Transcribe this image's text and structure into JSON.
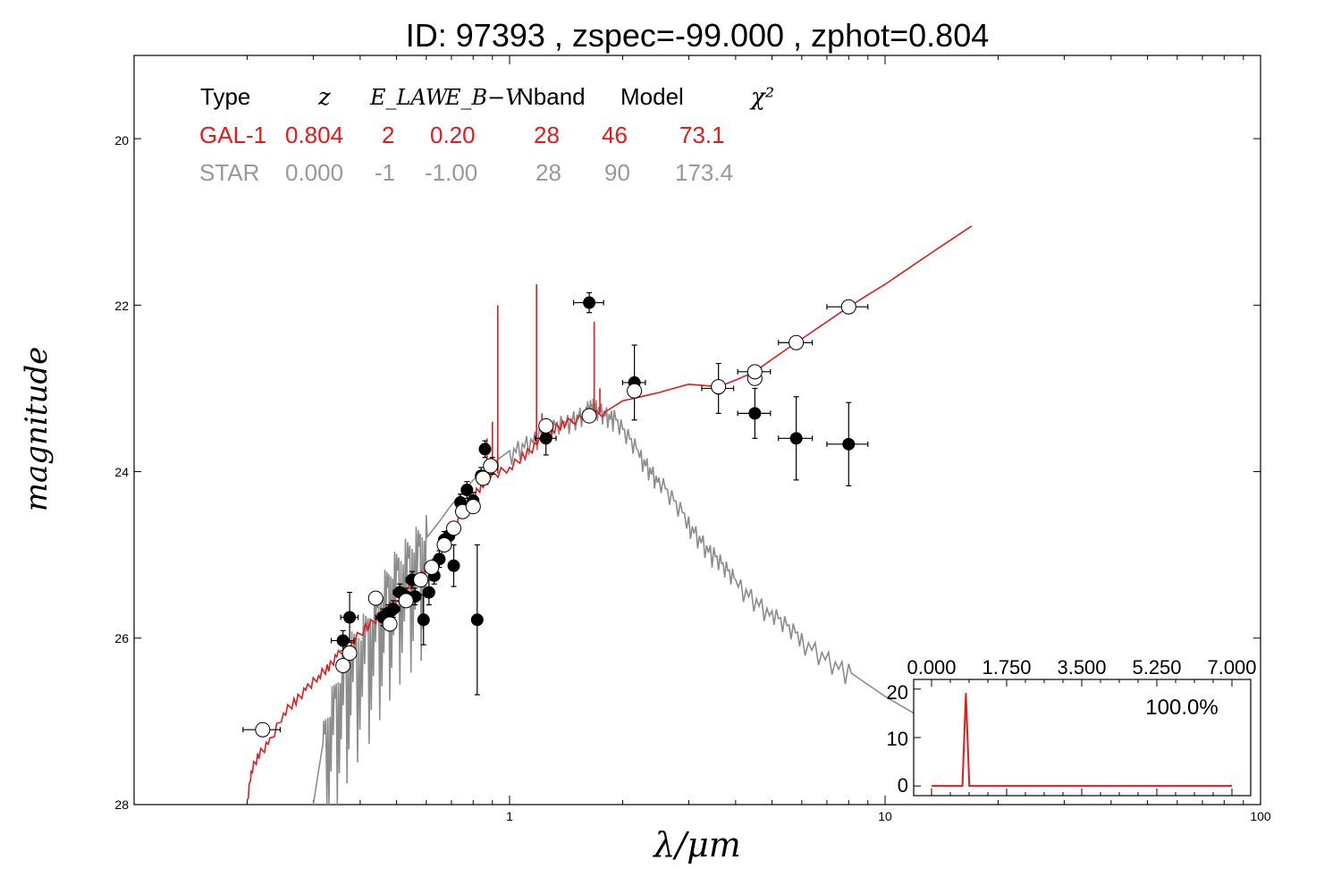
{
  "chart_data": [
    {
      "type": "scatter",
      "title": "ID:  97393 , zspec=-99.000 , zphot=0.804",
      "xlabel": "λ/μm",
      "ylabel": "magnitude",
      "xscale": "log",
      "xlim": [
        0.1,
        100
      ],
      "ylim": [
        28,
        19
      ],
      "y_inverted": true,
      "x_tick_labels": [
        "1",
        "10",
        "100"
      ],
      "y_tick_labels": [
        "20",
        "22",
        "24",
        "26",
        "28"
      ],
      "info_table": {
        "headers": [
          "Type",
          "z",
          "E_LAW",
          "E_B−V",
          "Nband",
          "Model",
          "χ²"
        ],
        "rows": [
          {
            "name": "GAL-1",
            "color": "#e41a1c",
            "values": [
              "GAL-1",
              "0.804",
              "2",
              "0.20",
              "28",
              "46",
              "73.1"
            ]
          },
          {
            "name": "STAR",
            "color": "#999999",
            "values": [
              "STAR",
              "0.000",
              "-1",
              "-1.00",
              "28",
              "90",
              "173.4"
            ]
          }
        ]
      },
      "colors": {
        "gal": "#e41a1c",
        "star": "#8c8c8c",
        "obs": "#000000",
        "model_mag": "#ffffff"
      },
      "series": [
        {
          "marker": "filled circle",
          "points": [
            {
              "x": 0.36,
              "y": 26.03,
              "xerr": 0.025,
              "yerr": 0.12
            },
            {
              "x": 0.375,
              "y": 25.75,
              "xerr": 0.02,
              "yerr": 0.3
            },
            {
              "x": 0.46,
              "y": 25.75,
              "xerr": 0.02,
              "yerr": 0.1
            },
            {
              "x": 0.475,
              "y": 25.7,
              "xerr": 0.02,
              "yerr": 0.1
            },
            {
              "x": 0.49,
              "y": 25.65,
              "xerr": 0.02,
              "yerr": 0.1
            },
            {
              "x": 0.51,
              "y": 25.45,
              "xerr": 0.02,
              "yerr": 0.1
            },
            {
              "x": 0.53,
              "y": 25.5,
              "xerr": 0.02,
              "yerr": 0.1
            },
            {
              "x": 0.55,
              "y": 25.3,
              "xerr": 0.02,
              "yerr": 0.1
            },
            {
              "x": 0.56,
              "y": 25.5,
              "xerr": 0.02,
              "yerr": 0.1
            },
            {
              "x": 0.59,
              "y": 25.78,
              "xerr": 0.015,
              "yerr": 0.3
            },
            {
              "x": 0.61,
              "y": 25.45,
              "xerr": 0.02,
              "yerr": 0.15
            },
            {
              "x": 0.63,
              "y": 25.25,
              "xerr": 0.02,
              "yerr": 0.1
            },
            {
              "x": 0.65,
              "y": 25.05,
              "xerr": 0.02,
              "yerr": 0.1
            },
            {
              "x": 0.67,
              "y": 24.82,
              "xerr": 0.02,
              "yerr": 0.1
            },
            {
              "x": 0.69,
              "y": 24.77,
              "xerr": 0.02,
              "yerr": 0.1
            },
            {
              "x": 0.71,
              "y": 25.13,
              "xerr": 0.02,
              "yerr": 0.25
            },
            {
              "x": 0.74,
              "y": 24.37,
              "xerr": 0.02,
              "yerr": 0.1
            },
            {
              "x": 0.77,
              "y": 24.22,
              "xerr": 0.02,
              "yerr": 0.1
            },
            {
              "x": 0.8,
              "y": 24.35,
              "xerr": 0.02,
              "yerr": 0.1
            },
            {
              "x": 0.82,
              "y": 25.78,
              "xerr": 0.01,
              "yerr": 0.9
            },
            {
              "x": 0.84,
              "y": 24.05,
              "xerr": 0.02,
              "yerr": 0.1
            },
            {
              "x": 0.86,
              "y": 23.73,
              "xerr": 0.02,
              "yerr": 0.1
            },
            {
              "x": 0.9,
              "y": 23.93,
              "xerr": 0.02,
              "yerr": 0.1
            },
            {
              "x": 1.25,
              "y": 23.6,
              "xerr": 0.08,
              "yerr": 0.2
            },
            {
              "x": 1.63,
              "y": 21.97,
              "xerr": 0.15,
              "yerr": 0.12
            },
            {
              "x": 2.15,
              "y": 22.93,
              "xerr": 0.15,
              "yerr": 0.45
            },
            {
              "x": 3.6,
              "y": 23.0,
              "xerr": 0.35,
              "yerr": 0.3
            },
            {
              "x": 4.5,
              "y": 23.3,
              "xerr": 0.45,
              "yerr": 0.3
            },
            {
              "x": 5.8,
              "y": 23.6,
              "xerr": 0.6,
              "yerr": 0.5
            },
            {
              "x": 8.0,
              "y": 23.67,
              "xerr": 1.0,
              "yerr": 0.5
            }
          ]
        },
        {
          "marker": "open circle",
          "points": [
            {
              "x": 0.22,
              "y": 27.1,
              "xerr": 0.025,
              "yerr": 0
            },
            {
              "x": 0.36,
              "y": 26.33,
              "xerr": 0,
              "yerr": 0
            },
            {
              "x": 0.375,
              "y": 26.18,
              "xerr": 0,
              "yerr": 0
            },
            {
              "x": 0.44,
              "y": 25.52,
              "xerr": 0,
              "yerr": 0
            },
            {
              "x": 0.48,
              "y": 25.83,
              "xerr": 0,
              "yerr": 0
            },
            {
              "x": 0.53,
              "y": 25.55,
              "xerr": 0,
              "yerr": 0
            },
            {
              "x": 0.58,
              "y": 25.3,
              "xerr": 0,
              "yerr": 0
            },
            {
              "x": 0.62,
              "y": 25.15,
              "xerr": 0,
              "yerr": 0
            },
            {
              "x": 0.67,
              "y": 24.88,
              "xerr": 0,
              "yerr": 0
            },
            {
              "x": 0.71,
              "y": 24.68,
              "xerr": 0,
              "yerr": 0
            },
            {
              "x": 0.75,
              "y": 24.48,
              "xerr": 0,
              "yerr": 0
            },
            {
              "x": 0.8,
              "y": 24.42,
              "xerr": 0,
              "yerr": 0
            },
            {
              "x": 0.85,
              "y": 24.08,
              "xerr": 0,
              "yerr": 0
            },
            {
              "x": 0.89,
              "y": 23.93,
              "xerr": 0,
              "yerr": 0
            },
            {
              "x": 1.25,
              "y": 23.45,
              "xerr": 0,
              "yerr": 0
            },
            {
              "x": 1.63,
              "y": 23.33,
              "xerr": 0,
              "yerr": 0
            },
            {
              "x": 2.15,
              "y": 23.03,
              "xerr": 0,
              "yerr": 0
            },
            {
              "x": 3.6,
              "y": 22.98,
              "xerr": 0,
              "yerr": 0
            },
            {
              "x": 4.5,
              "y": 22.88,
              "xerr": 0,
              "yerr": 0
            },
            {
              "x": 4.5,
              "y": 22.8,
              "xerr": 0.45,
              "yerr": 0
            },
            {
              "x": 5.8,
              "y": 22.45,
              "xerr": 0.6,
              "yerr": 0
            },
            {
              "x": 8.0,
              "y": 22.02,
              "xerr": 1.0,
              "yerr": 0
            }
          ]
        },
        {
          "line": "galaxy template",
          "color": "#e41a1c",
          "points": [
            [
              0.2,
              28.0
            ],
            [
              0.205,
              27.6
            ],
            [
              0.215,
              27.4
            ],
            [
              0.23,
              27.25
            ],
            [
              0.25,
              26.9
            ],
            [
              0.27,
              26.75
            ],
            [
              0.29,
              26.6
            ],
            [
              0.31,
              26.45
            ],
            [
              0.33,
              26.35
            ],
            [
              0.35,
              26.2
            ],
            [
              0.38,
              26.05
            ],
            [
              0.42,
              25.85
            ],
            [
              0.46,
              25.7
            ],
            [
              0.5,
              25.55
            ],
            [
              0.55,
              25.35
            ],
            [
              0.6,
              25.2
            ],
            [
              0.65,
              25.0
            ],
            [
              0.7,
              24.75
            ],
            [
              0.75,
              24.45
            ],
            [
              0.8,
              24.3
            ],
            [
              0.85,
              24.15
            ],
            [
              0.9,
              24.05
            ],
            [
              1.0,
              23.95
            ],
            [
              1.1,
              23.8
            ],
            [
              1.2,
              23.65
            ],
            [
              1.3,
              23.5
            ],
            [
              1.4,
              23.42
            ],
            [
              1.6,
              23.35
            ],
            [
              1.8,
              23.28
            ],
            [
              2.0,
              23.15
            ],
            [
              2.5,
              23.05
            ],
            [
              3.0,
              22.95
            ],
            [
              3.6,
              22.98
            ],
            [
              4.0,
              22.9
            ],
            [
              4.5,
              22.8
            ],
            [
              5.0,
              22.65
            ],
            [
              5.8,
              22.45
            ],
            [
              7.0,
              22.2
            ],
            [
              8.0,
              22.02
            ],
            [
              10.0,
              21.75
            ],
            [
              13.0,
              21.4
            ],
            [
              17.0,
              21.05
            ]
          ],
          "emission_lines": [
            {
              "x": 0.87,
              "peak": 23.6
            },
            {
              "x": 0.9,
              "peak": 23.4
            },
            {
              "x": 0.93,
              "peak": 22.0
            },
            {
              "x": 1.18,
              "peak": 21.75
            },
            {
              "x": 1.22,
              "peak": 23.3
            },
            {
              "x": 1.68,
              "peak": 22.2
            },
            {
              "x": 1.74,
              "peak": 23.0
            }
          ]
        },
        {
          "line": "star template",
          "color": "#8c8c8c",
          "points": [
            [
              0.3,
              28.0
            ],
            [
              0.32,
              27.2
            ],
            [
              0.35,
              26.6
            ],
            [
              0.38,
              26.2
            ],
            [
              0.42,
              25.9
            ],
            [
              0.46,
              25.5
            ],
            [
              0.5,
              25.2
            ],
            [
              0.55,
              25.0
            ],
            [
              0.6,
              24.8
            ],
            [
              0.65,
              24.6
            ],
            [
              0.7,
              24.4
            ],
            [
              0.75,
              24.25
            ],
            [
              0.8,
              24.1
            ],
            [
              0.9,
              23.9
            ],
            [
              1.0,
              23.75
            ],
            [
              1.2,
              23.55
            ],
            [
              1.4,
              23.4
            ],
            [
              1.6,
              23.25
            ],
            [
              1.7,
              23.2
            ],
            [
              1.9,
              23.35
            ],
            [
              2.2,
              23.75
            ],
            [
              2.5,
              24.1
            ],
            [
              3.0,
              24.6
            ],
            [
              3.5,
              25.0
            ],
            [
              4.0,
              25.3
            ],
            [
              5.0,
              25.7
            ],
            [
              6.0,
              26.0
            ],
            [
              8.0,
              26.4
            ],
            [
              10.0,
              26.7
            ],
            [
              13.0,
              27.0
            ]
          ],
          "absorption_range": [
            0.32,
            0.6
          ]
        }
      ]
    },
    {
      "type": "line",
      "inset": true,
      "x_tick_labels": [
        "0.000",
        "1.750",
        "3.500",
        "5.250",
        "7.000"
      ],
      "y_tick_labels": [
        "20",
        "10",
        "0"
      ],
      "xlim": [
        0,
        7
      ],
      "ylim": [
        -2,
        22
      ],
      "annotation": "100.0%",
      "color": "#e41a1c",
      "peak_x": 0.8,
      "peak_y": 19.2
    }
  ]
}
